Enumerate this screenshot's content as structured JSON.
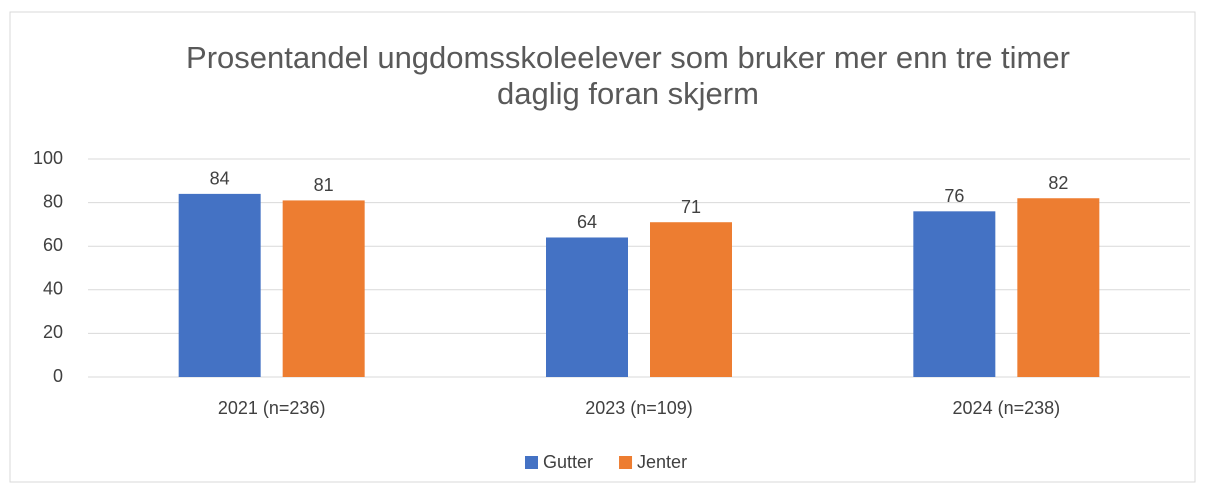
{
  "chart_data": {
    "type": "bar",
    "title": "Prosentandel ungdomsskoleelever som bruker mer enn tre timer daglig foran skjerm",
    "categories": [
      "2021 (n=236)",
      "2023 (n=109)",
      "2024 (n=238)"
    ],
    "series": [
      {
        "name": "Gutter",
        "color": "#4472c4",
        "values": [
          84,
          64,
          76
        ]
      },
      {
        "name": "Jenter",
        "color": "#ed7d31",
        "values": [
          81,
          71,
          82
        ]
      }
    ],
    "ylim": [
      0,
      100
    ],
    "yticks": [
      0,
      20,
      40,
      60,
      80,
      100
    ],
    "grid": true,
    "legend": "bottom"
  }
}
